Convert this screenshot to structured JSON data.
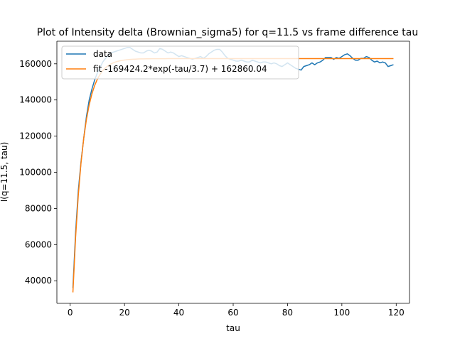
{
  "chart_data": {
    "type": "line",
    "title": "Plot of Intensity delta (Brownian_sigma5) for q=11.5 vs frame difference tau",
    "xlabel": "tau",
    "ylabel": "I(q=11.5, tau)",
    "xlim": [
      -4.9,
      124.9
    ],
    "ylim": [
      27500,
      172500
    ],
    "xticks": [
      0,
      20,
      40,
      60,
      80,
      100,
      120
    ],
    "yticks": [
      40000,
      60000,
      80000,
      100000,
      120000,
      140000,
      160000
    ],
    "xtick_labels": [
      "0",
      "20",
      "40",
      "60",
      "80",
      "100",
      "120"
    ],
    "ytick_labels": [
      "40000",
      "60000",
      "80000",
      "100000",
      "120000",
      "140000",
      "160000"
    ],
    "grid": false,
    "legend_position": "top-left",
    "series": [
      {
        "name": "data",
        "color": "#1f77b4",
        "x": [
          1,
          2,
          3,
          4,
          5,
          6,
          7,
          8,
          9,
          10,
          11,
          12,
          13,
          14,
          15,
          16,
          17,
          18,
          19,
          20,
          21,
          22,
          23,
          24,
          25,
          26,
          27,
          28,
          29,
          30,
          31,
          32,
          33,
          34,
          35,
          36,
          37,
          38,
          39,
          40,
          41,
          42,
          43,
          44,
          45,
          46,
          47,
          48,
          49,
          50,
          51,
          52,
          53,
          54,
          55,
          56,
          57,
          58,
          59,
          60,
          61,
          62,
          63,
          64,
          65,
          66,
          67,
          68,
          69,
          70,
          71,
          72,
          73,
          74,
          75,
          76,
          77,
          78,
          79,
          80,
          81,
          82,
          83,
          84,
          85,
          86,
          87,
          88,
          89,
          90,
          91,
          92,
          93,
          94,
          95,
          96,
          97,
          98,
          99,
          100,
          101,
          102,
          103,
          104,
          105,
          106,
          107,
          108,
          109,
          110,
          111,
          112,
          113,
          114,
          115,
          116,
          117,
          118,
          119
        ],
        "y": [
          36000,
          67000,
          90000,
          106000,
          119000,
          131000,
          140000,
          146000,
          151000,
          155000,
          158000,
          161000,
          163000,
          164500,
          166000,
          166500,
          167000,
          167500,
          168000,
          168500,
          169000,
          169000,
          168000,
          167000,
          166500,
          166000,
          166000,
          167000,
          167500,
          167000,
          166000,
          166500,
          168500,
          168000,
          167000,
          166000,
          166500,
          166000,
          165000,
          164000,
          164500,
          164000,
          163500,
          163000,
          162500,
          163000,
          163500,
          164000,
          163000,
          164000,
          165500,
          166500,
          167500,
          168000,
          168000,
          166500,
          164500,
          163000,
          162500,
          162000,
          161500,
          161500,
          162000,
          161500,
          161000,
          161000,
          162000,
          161500,
          161000,
          160500,
          161000,
          161000,
          160500,
          160000,
          160500,
          160000,
          159000,
          158500,
          159500,
          160500,
          159500,
          158500,
          157500,
          157000,
          156500,
          158500,
          159000,
          159500,
          160500,
          159500,
          160500,
          161000,
          162000,
          163500,
          163500,
          163500,
          162500,
          163500,
          163000,
          164000,
          165000,
          165500,
          164500,
          163000,
          162000,
          162000,
          163000,
          163000,
          164000,
          163500,
          162000,
          161000,
          161500,
          160500,
          161000,
          160500,
          158500,
          159000,
          159500
        ]
      },
      {
        "name": "fit -169424.2*exp(-tau/3.7) + 162860.04",
        "color": "#ff7f0e",
        "function": {
          "a": -169424.2,
          "tau_scale": 3.7,
          "c": 162860.04
        },
        "x_range": [
          1,
          119
        ]
      }
    ]
  }
}
